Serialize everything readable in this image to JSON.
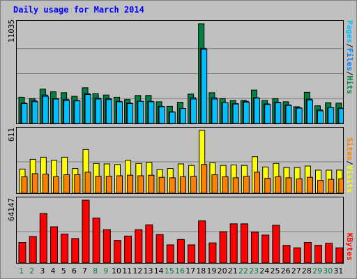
{
  "title": "Daily usage for March 2014",
  "colors": {
    "background": "#c0c0c0",
    "hits": "#008040",
    "files": "#0080ff",
    "pages": "#00c0ff",
    "visits": "#ffff00",
    "sites": "#ff8000",
    "kbytes": "#ff0000",
    "title": "#0000ff",
    "weekend_label": "#008040",
    "weekday_label": "#000000"
  },
  "chart_data": [
    {
      "type": "bar",
      "ymax_label": "11035",
      "ylim": [
        0,
        11035
      ],
      "grid": true,
      "legend_side": "right",
      "legend": [
        {
          "name": "Pages",
          "color": "#00c0ff"
        },
        {
          "sep": "/"
        },
        {
          "name": "Files",
          "color": "#0080ff"
        },
        {
          "sep": "/"
        },
        {
          "name": "Hits",
          "color": "#008040"
        }
      ],
      "categories": [
        "1",
        "2",
        "3",
        "4",
        "5",
        "6",
        "7",
        "8",
        "9",
        "10",
        "11",
        "12",
        "13",
        "14",
        "15",
        "16",
        "17",
        "18",
        "19",
        "20",
        "21",
        "22",
        "23",
        "24",
        "25",
        "26",
        "27",
        "28",
        "29",
        "30",
        "31"
      ],
      "series": [
        {
          "name": "Hits",
          "values": [
            2900,
            2750,
            3800,
            3500,
            3400,
            3000,
            3950,
            3300,
            3150,
            2900,
            2650,
            3100,
            3100,
            2400,
            1900,
            2350,
            3250,
            11035,
            3400,
            2750,
            2550,
            2550,
            3700,
            2550,
            2750,
            2400,
            1850,
            3450,
            1950,
            2300,
            2250
          ]
        },
        {
          "name": "Files",
          "values": [
            2250,
            2500,
            3150,
            2750,
            2650,
            2550,
            3300,
            2800,
            2750,
            2450,
            2250,
            2450,
            2450,
            1900,
            1300,
            1650,
            2850,
            8300,
            2850,
            2300,
            2200,
            2450,
            2850,
            2150,
            2350,
            2050,
            1750,
            2700,
            1500,
            1750,
            1700
          ]
        },
        {
          "name": "Pages",
          "values": [
            2200,
            2400,
            3000,
            2700,
            2550,
            2500,
            3200,
            2700,
            2650,
            2400,
            2200,
            2450,
            2400,
            1850,
            1250,
            1650,
            2700,
            8200,
            2700,
            2300,
            2150,
            2350,
            2800,
            2100,
            2300,
            2000,
            1700,
            2600,
            1400,
            1750,
            1650
          ]
        }
      ]
    },
    {
      "type": "bar",
      "ymax_label": "611",
      "ylim": [
        0,
        611
      ],
      "grid": true,
      "legend_side": "right",
      "legend": [
        {
          "name": "Sites",
          "color": "#ff8000"
        },
        {
          "sep": "/"
        },
        {
          "name": "Visits",
          "color": "#ffff00"
        }
      ],
      "categories": [
        "1",
        "2",
        "3",
        "4",
        "5",
        "6",
        "7",
        "8",
        "9",
        "10",
        "11",
        "12",
        "13",
        "14",
        "15",
        "16",
        "17",
        "18",
        "19",
        "20",
        "21",
        "22",
        "23",
        "24",
        "25",
        "26",
        "27",
        "28",
        "29",
        "30",
        "31"
      ],
      "series": [
        {
          "name": "Visits",
          "values": [
            235,
            330,
            350,
            320,
            350,
            240,
            425,
            290,
            285,
            280,
            320,
            290,
            300,
            230,
            240,
            285,
            270,
            611,
            295,
            270,
            275,
            270,
            355,
            255,
            290,
            250,
            250,
            265,
            225,
            225,
            225
          ]
        },
        {
          "name": "Sites",
          "values": [
            160,
            190,
            185,
            160,
            180,
            180,
            205,
            165,
            165,
            170,
            175,
            170,
            175,
            155,
            150,
            160,
            165,
            280,
            180,
            160,
            150,
            165,
            205,
            145,
            160,
            150,
            140,
            155,
            125,
            135,
            140
          ]
        }
      ]
    },
    {
      "type": "bar",
      "ymax_label": "64147",
      "ylim": [
        0,
        64147
      ],
      "grid": true,
      "legend_side": "right",
      "legend": [
        {
          "name": "KBytes",
          "color": "#ff0000"
        }
      ],
      "categories": [
        "1",
        "2",
        "3",
        "4",
        "5",
        "6",
        "7",
        "8",
        "9",
        "10",
        "11",
        "12",
        "13",
        "14",
        "15",
        "16",
        "17",
        "18",
        "19",
        "20",
        "21",
        "22",
        "23",
        "24",
        "25",
        "26",
        "27",
        "28",
        "29",
        "30",
        "31"
      ],
      "series": [
        {
          "name": "KBytes",
          "values": [
            21000,
            27000,
            50500,
            37000,
            29500,
            25000,
            64147,
            46000,
            34000,
            23000,
            27500,
            34000,
            39000,
            29000,
            18500,
            24000,
            18500,
            43000,
            20500,
            32000,
            40000,
            40000,
            31500,
            28500,
            38500,
            18000,
            15500,
            21000,
            18000,
            20000,
            15500
          ]
        }
      ]
    }
  ],
  "x_labels": [
    {
      "text": "1",
      "weekend": true
    },
    {
      "text": "2",
      "weekend": true
    },
    {
      "text": "3",
      "weekend": false
    },
    {
      "text": "4",
      "weekend": false
    },
    {
      "text": "5",
      "weekend": false
    },
    {
      "text": "6",
      "weekend": false
    },
    {
      "text": "7",
      "weekend": false
    },
    {
      "text": "8",
      "weekend": true
    },
    {
      "text": "9",
      "weekend": true
    },
    {
      "text": "10",
      "weekend": false
    },
    {
      "text": "11",
      "weekend": false
    },
    {
      "text": "12",
      "weekend": false
    },
    {
      "text": "13",
      "weekend": false
    },
    {
      "text": "14",
      "weekend": false
    },
    {
      "text": "15",
      "weekend": true
    },
    {
      "text": "16",
      "weekend": true
    },
    {
      "text": "17",
      "weekend": false
    },
    {
      "text": "18",
      "weekend": false
    },
    {
      "text": "19",
      "weekend": false
    },
    {
      "text": "20",
      "weekend": false
    },
    {
      "text": "21",
      "weekend": false
    },
    {
      "text": "22",
      "weekend": true
    },
    {
      "text": "23",
      "weekend": true
    },
    {
      "text": "24",
      "weekend": false
    },
    {
      "text": "25",
      "weekend": false
    },
    {
      "text": "26",
      "weekend": false
    },
    {
      "text": "27",
      "weekend": false
    },
    {
      "text": "28",
      "weekend": false
    },
    {
      "text": "29",
      "weekend": true
    },
    {
      "text": "30",
      "weekend": true
    },
    {
      "text": "31",
      "weekend": false
    }
  ]
}
